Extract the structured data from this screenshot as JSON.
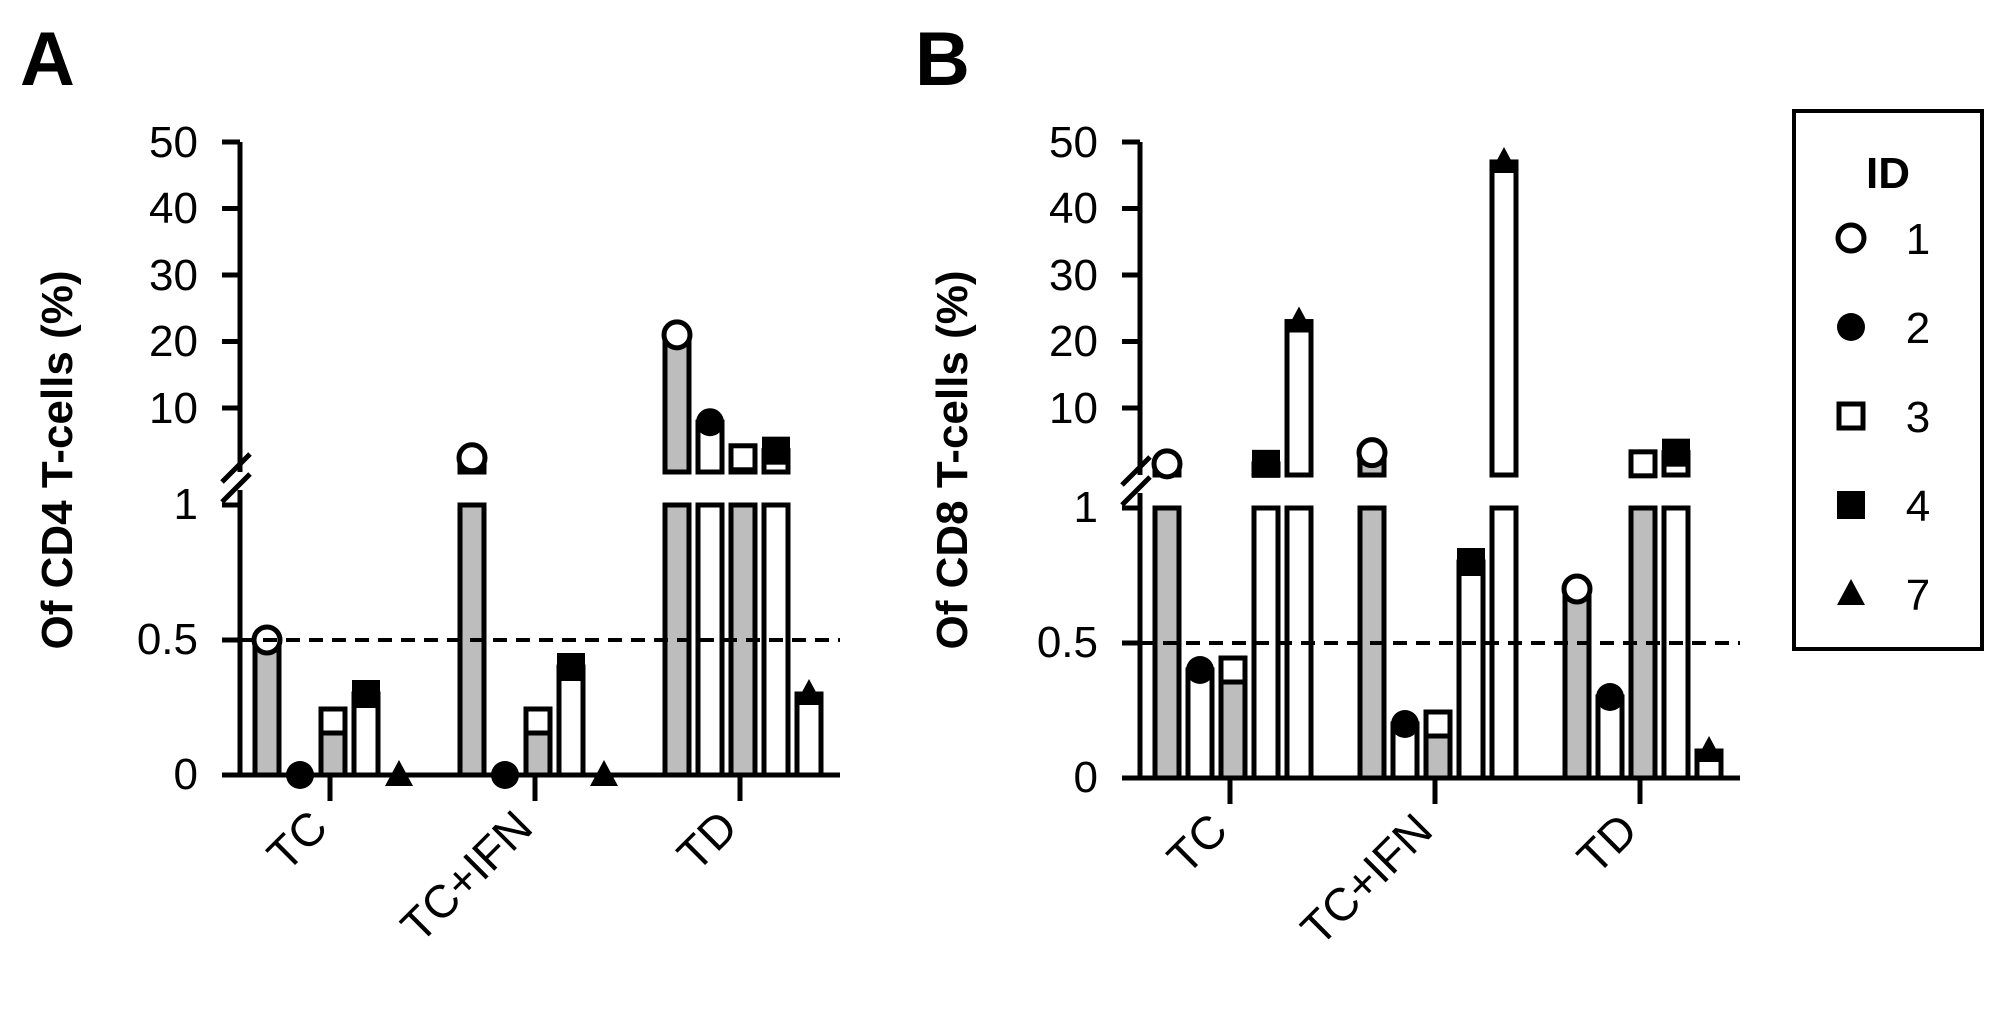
{
  "panels": [
    {
      "letter": "A",
      "ylabel": "Of CD4 T-cells (%)",
      "yticks_lower": [
        "0",
        "0.5",
        "1"
      ],
      "yticks_upper": [
        "10",
        "20",
        "30",
        "40",
        "50"
      ],
      "categories": [
        "TC",
        "TC+IFN",
        "TD"
      ]
    },
    {
      "letter": "B",
      "ylabel": "Of CD8 T-cells (%)",
      "yticks_lower": [
        "0",
        "0.5",
        "1"
      ],
      "yticks_upper": [
        "10",
        "20",
        "30",
        "40",
        "50"
      ],
      "categories": [
        "TC",
        "TC+IFN",
        "TD"
      ]
    }
  ],
  "legend": {
    "title": "ID",
    "entries": [
      {
        "label": "1",
        "marker": "open-circle"
      },
      {
        "label": "2",
        "marker": "filled-circle"
      },
      {
        "label": "3",
        "marker": "open-square"
      },
      {
        "label": "4",
        "marker": "filled-square"
      },
      {
        "label": "7",
        "marker": "filled-triangle"
      }
    ]
  },
  "colors": {
    "ink": "#000000",
    "bar_gray": "#bdbdbd",
    "bar_white": "#ffffff"
  },
  "chart_data": [
    {
      "type": "bar",
      "ylabel": "Of CD4 T-cells (%)",
      "categories": [
        "TC",
        "TC+IFN",
        "TD"
      ],
      "y_axis_segments": [
        [
          0,
          1
        ],
        [
          1,
          50
        ]
      ],
      "reference_line": 0.5,
      "series": [
        {
          "name": "1",
          "marker": "open-circle",
          "values": [
            0.5,
            3,
            21
          ]
        },
        {
          "name": "2",
          "marker": "filled-circle",
          "values": [
            0,
            0,
            8
          ]
        },
        {
          "name": "3",
          "marker": "open-square",
          "values": [
            0.2,
            0.2,
            3
          ]
        },
        {
          "name": "4",
          "marker": "filled-square",
          "values": [
            0.3,
            0.4,
            4
          ]
        },
        {
          "name": "7",
          "marker": "filled-triangle",
          "values": [
            0,
            0,
            0.3
          ]
        }
      ]
    },
    {
      "type": "bar",
      "ylabel": "Of CD8 T-cells (%)",
      "categories": [
        "TC",
        "TC+IFN",
        "TD"
      ],
      "y_axis_segments": [
        [
          0,
          1
        ],
        [
          1,
          50
        ]
      ],
      "reference_line": 0.5,
      "series": [
        {
          "name": "1",
          "marker": "open-circle",
          "values": [
            2.5,
            4,
            0.7
          ]
        },
        {
          "name": "2",
          "marker": "filled-circle",
          "values": [
            0.4,
            0.2,
            0.3
          ]
        },
        {
          "name": "3",
          "marker": "open-square",
          "values": [
            0.4,
            0.2,
            2.5
          ]
        },
        {
          "name": "4",
          "marker": "filled-square",
          "values": [
            2.5,
            0.8,
            4
          ]
        },
        {
          "name": "7",
          "marker": "filled-triangle",
          "values": [
            23,
            47,
            0.1
          ]
        }
      ]
    }
  ]
}
